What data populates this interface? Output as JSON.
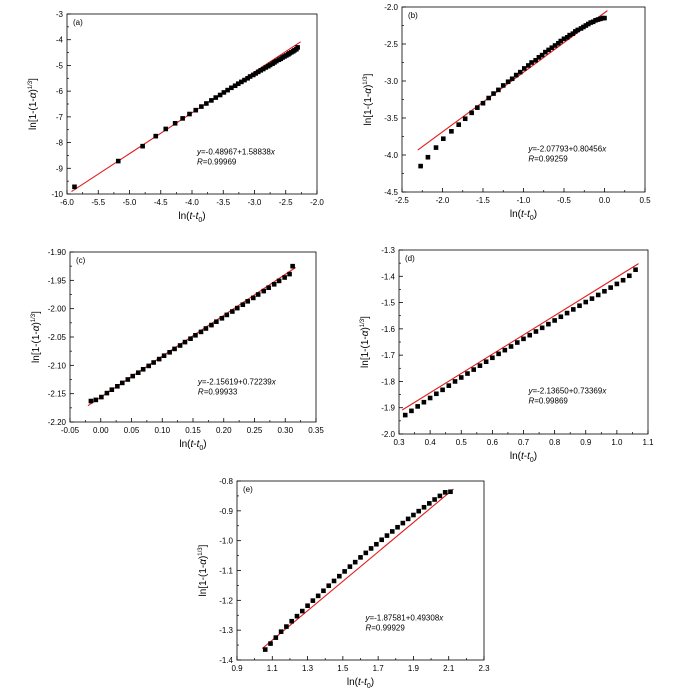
{
  "chart_data": [
    {
      "type": "scatter",
      "panel_label": "(a)",
      "xlabel": {
        "main": "ln(",
        "t1": "t",
        "minus": "-",
        "t2": "t",
        "sub": "0",
        "close": ")"
      },
      "ylabel": {
        "main": "ln[1-(1-",
        "alpha": "α",
        "close": ")",
        "sup": "1/3",
        "end": "]"
      },
      "xlim": [
        -6.0,
        -2.0
      ],
      "ylim": [
        -10,
        -3
      ],
      "xticks": [
        -6.0,
        -5.5,
        -5.0,
        -4.5,
        -4.0,
        -3.5,
        -3.0,
        -2.5,
        -2.0
      ],
      "xtick_labels": [
        "-6.0",
        "-5.5",
        "-5.0",
        "-4.5",
        "-4.0",
        "-3.5",
        "-3.0",
        "-2.5",
        "-2.0"
      ],
      "yticks": [
        -10,
        -9,
        -8,
        -7,
        -6,
        -5,
        -4,
        -3
      ],
      "ytick_labels": [
        "-10",
        "-9",
        "-8",
        "-7",
        "-6",
        "-5",
        "-4",
        "-3"
      ],
      "equation": {
        "y": "y",
        "rhs": "=-0.48967+1.58838",
        "x": "x"
      },
      "r_value": {
        "r": "R",
        "rhs": "=0.99969"
      },
      "fit": {
        "intercept": -0.48967,
        "slope": 1.58838
      },
      "x": [
        -5.88,
        -5.18,
        -4.79,
        -4.58,
        -4.42,
        -4.27,
        -4.15,
        -4.04,
        -3.94,
        -3.85,
        -3.77,
        -3.69,
        -3.62,
        -3.55,
        -3.49,
        -3.43,
        -3.37,
        -3.31,
        -3.26,
        -3.21,
        -3.16,
        -3.11,
        -3.07,
        -3.02,
        -2.98,
        -2.94,
        -2.9,
        -2.86,
        -2.82,
        -2.78,
        -2.75,
        -2.71,
        -2.68,
        -2.65,
        -2.61,
        -2.58,
        -2.55,
        -2.52,
        -2.49,
        -2.46,
        -2.44,
        -2.41,
        -2.38,
        -2.36,
        -2.33,
        -2.31
      ],
      "y": [
        -9.72,
        -8.72,
        -8.14,
        -7.75,
        -7.47,
        -7.25,
        -7.06,
        -6.89,
        -6.74,
        -6.6,
        -6.48,
        -6.36,
        -6.25,
        -6.15,
        -6.05,
        -5.96,
        -5.87,
        -5.79,
        -5.71,
        -5.64,
        -5.57,
        -5.5,
        -5.43,
        -5.37,
        -5.31,
        -5.25,
        -5.19,
        -5.14,
        -5.08,
        -5.03,
        -4.98,
        -4.93,
        -4.88,
        -4.83,
        -4.78,
        -4.74,
        -4.69,
        -4.65,
        -4.61,
        -4.57,
        -4.53,
        -4.49,
        -4.45,
        -4.41,
        -4.37,
        -4.3
      ]
    },
    {
      "type": "scatter",
      "panel_label": "(b)",
      "xlabel": {
        "main": "ln(",
        "t1": "t",
        "minus": "-",
        "t2": "t",
        "sub": "0",
        "close": ")"
      },
      "ylabel": {
        "main": "ln[1-(1-",
        "alpha": "α",
        "close": ")",
        "sup": "1/3",
        "end": "]"
      },
      "xlim": [
        -2.5,
        0.5
      ],
      "ylim": [
        -4.5,
        -2.0
      ],
      "xticks": [
        -2.5,
        -2.0,
        -1.5,
        -1.0,
        -0.5,
        0.0,
        0.5
      ],
      "xtick_labels": [
        "-2.5",
        "-2.0",
        "-1.5",
        "-1.0",
        "-0.5",
        "0.0",
        "0.5"
      ],
      "yticks": [
        -4.5,
        -4.0,
        -3.5,
        -3.0,
        -2.5,
        -2.0
      ],
      "ytick_labels": [
        "-4.5",
        "-4.0",
        "-3.5",
        "-3.0",
        "-2.5",
        "-2.0"
      ],
      "equation": {
        "y": "y",
        "rhs": "=-2.07793+0.80456",
        "x": "x"
      },
      "r_value": {
        "r": "R",
        "rhs": "=0.99259"
      },
      "fit": {
        "intercept": -2.07793,
        "slope": 0.80456
      },
      "x": [
        -2.27,
        -2.18,
        -2.08,
        -1.99,
        -1.89,
        -1.8,
        -1.72,
        -1.64,
        -1.57,
        -1.5,
        -1.43,
        -1.37,
        -1.31,
        -1.25,
        -1.19,
        -1.14,
        -1.09,
        -1.04,
        -0.99,
        -0.94,
        -0.9,
        -0.85,
        -0.81,
        -0.77,
        -0.73,
        -0.69,
        -0.65,
        -0.61,
        -0.57,
        -0.54,
        -0.5,
        -0.46,
        -0.43,
        -0.39,
        -0.36,
        -0.33,
        -0.29,
        -0.26,
        -0.23,
        -0.2,
        -0.17,
        -0.14,
        -0.11,
        -0.08,
        -0.05,
        -0.02,
        0.0
      ],
      "y": [
        -4.15,
        -4.03,
        -3.9,
        -3.78,
        -3.68,
        -3.59,
        -3.51,
        -3.43,
        -3.36,
        -3.3,
        -3.23,
        -3.17,
        -3.12,
        -3.06,
        -3.01,
        -2.97,
        -2.92,
        -2.88,
        -2.83,
        -2.79,
        -2.75,
        -2.72,
        -2.68,
        -2.65,
        -2.61,
        -2.58,
        -2.55,
        -2.52,
        -2.49,
        -2.46,
        -2.43,
        -2.41,
        -2.38,
        -2.36,
        -2.33,
        -2.31,
        -2.29,
        -2.27,
        -2.25,
        -2.23,
        -2.21,
        -2.2,
        -2.18,
        -2.17,
        -2.16,
        -2.15,
        -2.15
      ]
    },
    {
      "type": "scatter",
      "panel_label": "(c)",
      "xlabel": {
        "main": "ln(",
        "t1": "t",
        "minus": "-",
        "t2": "t",
        "sub": "0",
        "close": ")"
      },
      "ylabel": {
        "main": "ln[1-(1-",
        "alpha": "α",
        "close": ")",
        "sup": "1/3",
        "end": "]"
      },
      "xlim": [
        -0.05,
        0.35
      ],
      "ylim": [
        -2.2,
        -1.9
      ],
      "xticks": [
        -0.05,
        0.0,
        0.05,
        0.1,
        0.15,
        0.2,
        0.25,
        0.3,
        0.35
      ],
      "xtick_labels": [
        "-0.05",
        "0.00",
        "0.05",
        "0.10",
        "0.15",
        "0.20",
        "0.25",
        "0.30",
        "0.35"
      ],
      "yticks": [
        -2.2,
        -2.15,
        -2.1,
        -2.05,
        -2.0,
        -1.95,
        -1.9
      ],
      "ytick_labels": [
        "-2.20",
        "-2.15",
        "-2.10",
        "-2.05",
        "-2.00",
        "-1.95",
        "-1.90"
      ],
      "equation": {
        "y": "y",
        "rhs": "=-2.15619+0.72239",
        "x": "x"
      },
      "r_value": {
        "r": "R",
        "rhs": "=0.99933"
      },
      "fit": {
        "intercept": -2.15619,
        "slope": 0.72239
      },
      "x": [
        -0.016,
        -0.008,
        0.001,
        0.01,
        0.018,
        0.027,
        0.035,
        0.044,
        0.052,
        0.061,
        0.069,
        0.078,
        0.086,
        0.095,
        0.103,
        0.112,
        0.12,
        0.129,
        0.137,
        0.146,
        0.154,
        0.163,
        0.171,
        0.18,
        0.188,
        0.197,
        0.205,
        0.214,
        0.222,
        0.231,
        0.239,
        0.248,
        0.256,
        0.265,
        0.273,
        0.282,
        0.29,
        0.299,
        0.307,
        0.312
      ],
      "y": [
        -2.163,
        -2.161,
        -2.156,
        -2.149,
        -2.143,
        -2.137,
        -2.131,
        -2.125,
        -2.119,
        -2.113,
        -2.107,
        -2.101,
        -2.095,
        -2.089,
        -2.083,
        -2.077,
        -2.071,
        -2.065,
        -2.059,
        -2.053,
        -2.047,
        -2.041,
        -2.035,
        -2.029,
        -2.023,
        -2.017,
        -2.011,
        -2.005,
        -1.999,
        -1.993,
        -1.987,
        -1.981,
        -1.975,
        -1.969,
        -1.963,
        -1.957,
        -1.951,
        -1.945,
        -1.939,
        -1.925
      ]
    },
    {
      "type": "scatter",
      "panel_label": "(d)",
      "xlabel": {
        "main": "ln(",
        "t1": "t",
        "minus": "-",
        "t2": "t",
        "sub": "0",
        "close": ")"
      },
      "ylabel": {
        "main": "ln[1-(1-",
        "alpha": "α",
        "close": ")",
        "sup": "1/3",
        "end": "]"
      },
      "xlim": [
        0.3,
        1.1
      ],
      "ylim": [
        -2.0,
        -1.3
      ],
      "xticks": [
        0.3,
        0.4,
        0.5,
        0.6,
        0.7,
        0.8,
        0.9,
        1.0,
        1.1
      ],
      "xtick_labels": [
        "0.3",
        "0.4",
        "0.5",
        "0.6",
        "0.7",
        "0.8",
        "0.9",
        "1.0",
        "1.1"
      ],
      "yticks": [
        -2.0,
        -1.9,
        -1.8,
        -1.7,
        -1.6,
        -1.5,
        -1.4,
        -1.3
      ],
      "ytick_labels": [
        "-2.0",
        "-1.9",
        "-1.8",
        "-1.7",
        "-1.6",
        "-1.5",
        "-1.4",
        "-1.3"
      ],
      "equation": {
        "y": "y",
        "rhs": "=-2.13650+0.73369",
        "x": "x"
      },
      "r_value": {
        "r": "R",
        "rhs": "=0.99869"
      },
      "fit": {
        "intercept": -2.1365,
        "slope": 0.73369
      },
      "x": [
        0.32,
        0.34,
        0.36,
        0.38,
        0.4,
        0.42,
        0.44,
        0.46,
        0.48,
        0.5,
        0.52,
        0.54,
        0.56,
        0.58,
        0.6,
        0.62,
        0.64,
        0.66,
        0.68,
        0.7,
        0.72,
        0.74,
        0.76,
        0.78,
        0.8,
        0.82,
        0.84,
        0.86,
        0.88,
        0.9,
        0.92,
        0.94,
        0.96,
        0.98,
        1.0,
        1.02,
        1.04,
        1.06
      ],
      "y": [
        -1.928,
        -1.912,
        -1.895,
        -1.879,
        -1.863,
        -1.847,
        -1.832,
        -1.816,
        -1.8,
        -1.785,
        -1.77,
        -1.755,
        -1.74,
        -1.725,
        -1.71,
        -1.695,
        -1.681,
        -1.667,
        -1.652,
        -1.638,
        -1.624,
        -1.61,
        -1.596,
        -1.582,
        -1.568,
        -1.554,
        -1.54,
        -1.526,
        -1.512,
        -1.498,
        -1.485,
        -1.471,
        -1.457,
        -1.443,
        -1.429,
        -1.415,
        -1.398,
        -1.375
      ]
    },
    {
      "type": "scatter",
      "panel_label": "(e)",
      "xlabel": {
        "main": "ln(",
        "t1": "t",
        "minus": "-",
        "t2": "t",
        "sub": "0",
        "close": ")"
      },
      "ylabel": {
        "main": "ln[1-(1-",
        "alpha": "α",
        "close": ")",
        "sup": "1/3",
        "end": "]"
      },
      "xlim": [
        0.9,
        2.3
      ],
      "ylim": [
        -1.4,
        -0.8
      ],
      "xticks": [
        0.9,
        1.1,
        1.3,
        1.5,
        1.7,
        1.9,
        2.1,
        2.3
      ],
      "xtick_labels": [
        "0.9",
        "1.1",
        "1.3",
        "1.5",
        "1.7",
        "1.9",
        "2.1",
        "2.3"
      ],
      "yticks": [
        -1.4,
        -1.3,
        -1.2,
        -1.1,
        -1.0,
        -0.9,
        -0.8
      ],
      "ytick_labels": [
        "-1.4",
        "-1.3",
        "-1.2",
        "-1.1",
        "-1.0",
        "-0.9",
        "-0.8"
      ],
      "equation": {
        "y": "y",
        "rhs": "=-1.87581+0.49308",
        "x": "x"
      },
      "r_value": {
        "r": "R",
        "rhs": "=0.99929"
      },
      "fit": {
        "intercept": -1.87581,
        "slope": 0.49308
      },
      "x": [
        1.06,
        1.09,
        1.12,
        1.15,
        1.18,
        1.21,
        1.24,
        1.27,
        1.3,
        1.33,
        1.36,
        1.39,
        1.42,
        1.45,
        1.48,
        1.51,
        1.54,
        1.57,
        1.6,
        1.63,
        1.66,
        1.69,
        1.72,
        1.75,
        1.78,
        1.81,
        1.84,
        1.87,
        1.9,
        1.93,
        1.96,
        1.99,
        2.02,
        2.05,
        2.08,
        2.11
      ],
      "y": [
        -1.365,
        -1.345,
        -1.325,
        -1.305,
        -1.288,
        -1.27,
        -1.253,
        -1.236,
        -1.218,
        -1.201,
        -1.185,
        -1.168,
        -1.151,
        -1.135,
        -1.119,
        -1.103,
        -1.087,
        -1.072,
        -1.056,
        -1.041,
        -1.026,
        -1.012,
        -0.997,
        -0.983,
        -0.969,
        -0.955,
        -0.941,
        -0.927,
        -0.914,
        -0.901,
        -0.888,
        -0.875,
        -0.862,
        -0.85,
        -0.838,
        -0.836
      ]
    }
  ]
}
